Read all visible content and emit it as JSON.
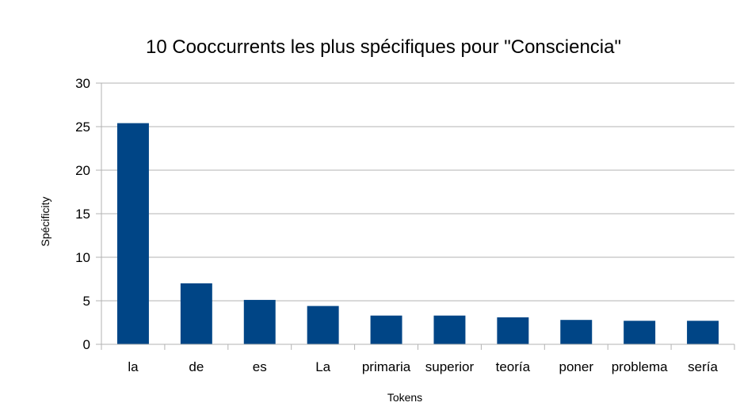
{
  "chart_data": {
    "type": "bar",
    "title": "10 Cooccurrents les plus spécifiques pour \"Consciencia\"",
    "xlabel": "Tokens",
    "ylabel": "Spécificity",
    "categories": [
      "la",
      "de",
      "es",
      "La",
      "primaria",
      "superior",
      "teoría",
      "poner",
      "problema",
      "sería"
    ],
    "values": [
      25.4,
      7.0,
      5.1,
      4.4,
      3.3,
      3.3,
      3.1,
      2.8,
      2.7,
      2.7
    ],
    "ylim": [
      0,
      30
    ],
    "yticks": [
      0,
      5,
      10,
      15,
      20,
      25,
      30
    ],
    "grid": true,
    "legend": "none",
    "colors": {
      "bar": "#004586",
      "grid": "#b3b3b3",
      "axis": "#b3b3b3"
    }
  }
}
